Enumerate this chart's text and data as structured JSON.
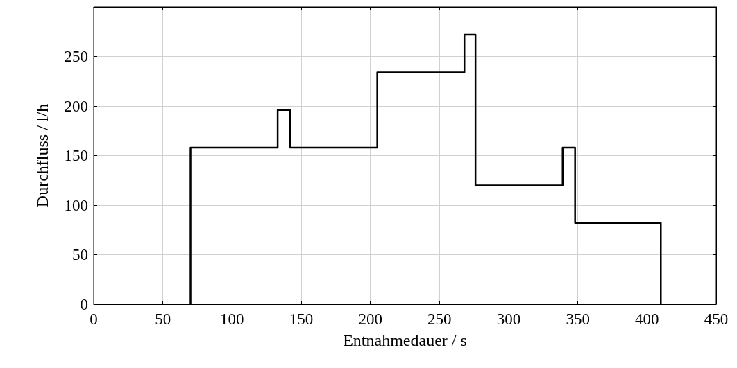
{
  "chart_data": {
    "type": "step",
    "xlabel": "Entnahmedauer / s",
    "ylabel": "Durchfluss / l/h",
    "x": [
      70,
      70,
      133,
      142,
      205,
      268,
      276,
      339,
      348,
      410
    ],
    "series": [
      {
        "color": "#000000",
        "values": [
          0,
          158,
          196,
          158,
          234,
          272,
          120,
          158,
          82,
          0
        ]
      }
    ],
    "xlim": [
      0,
      450
    ],
    "xticks": [
      0,
      50,
      100,
      150,
      200,
      250,
      300,
      350,
      400,
      450
    ],
    "ylim": [
      0,
      300
    ],
    "yticks": [
      0,
      50,
      100,
      150,
      200,
      250
    ],
    "grid": true,
    "marker": "none",
    "line_style": "solid"
  }
}
